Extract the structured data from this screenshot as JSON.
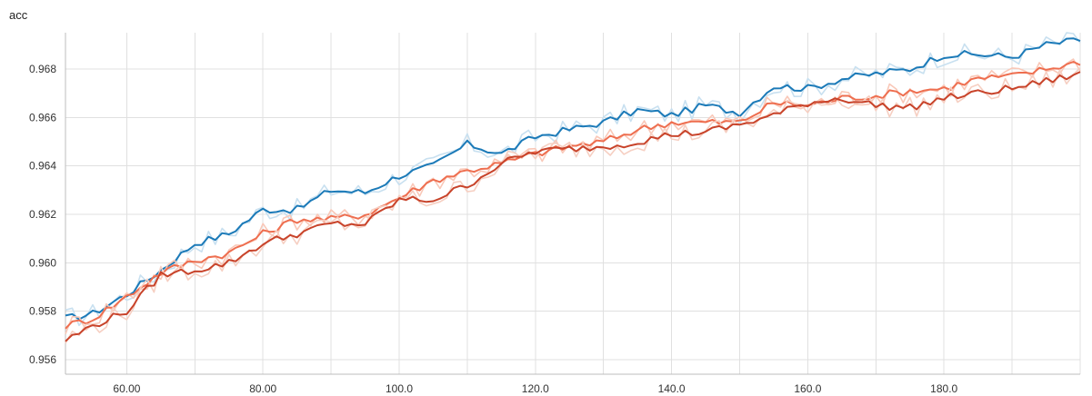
{
  "chart_data": {
    "type": "line",
    "title": "acc",
    "xlabel": "",
    "ylabel": "",
    "xlim": [
      51,
      200
    ],
    "ylim": [
      0.9554,
      0.9695
    ],
    "x_ticks": [
      60,
      80,
      100,
      120,
      140,
      160,
      180
    ],
    "x_tick_labels": [
      "60.00",
      "80.00",
      "100.0",
      "120.0",
      "140.0",
      "160.0",
      "180.0"
    ],
    "y_ticks": [
      0.956,
      0.958,
      0.96,
      0.962,
      0.964,
      0.966,
      0.968
    ],
    "y_tick_labels": [
      "0.956",
      "0.958",
      "0.960",
      "0.962",
      "0.964",
      "0.966",
      "0.968"
    ],
    "grid": true,
    "legend": "none",
    "colors": {
      "blue": "#1b7ab8",
      "blue_raw": "#c8e0f0",
      "orange": "#ee6e4f",
      "orange_raw": "#f9c8b8",
      "darkred": "#c8432a",
      "darkred_raw": "#f6cfc2"
    },
    "series": [
      {
        "color": "#1b7ab8",
        "raw_color": "#c8e0f0",
        "points": [
          [
            51,
            0.9577
          ],
          [
            55,
            0.9579
          ],
          [
            60,
            0.9587
          ],
          [
            65,
            0.9597
          ],
          [
            70,
            0.9608
          ],
          [
            75,
            0.9612
          ],
          [
            80,
            0.9622
          ],
          [
            85,
            0.9622
          ],
          [
            90,
            0.963
          ],
          [
            95,
            0.9629
          ],
          [
            100,
            0.9636
          ],
          [
            105,
            0.964
          ],
          [
            110,
            0.9649
          ],
          [
            115,
            0.9645
          ],
          [
            120,
            0.9652
          ],
          [
            125,
            0.9655
          ],
          [
            130,
            0.9658
          ],
          [
            135,
            0.9663
          ],
          [
            140,
            0.9661
          ],
          [
            145,
            0.9665
          ],
          [
            150,
            0.9662
          ],
          [
            155,
            0.9673
          ],
          [
            160,
            0.9672
          ],
          [
            165,
            0.9676
          ],
          [
            170,
            0.9678
          ],
          [
            175,
            0.968
          ],
          [
            180,
            0.9686
          ],
          [
            185,
            0.9686
          ],
          [
            190,
            0.9685
          ],
          [
            195,
            0.969
          ],
          [
            200,
            0.9692
          ]
        ]
      },
      {
        "color": "#ee6e4f",
        "raw_color": "#f9c8b8",
        "points": [
          [
            51,
            0.9574
          ],
          [
            55,
            0.9577
          ],
          [
            60,
            0.9586
          ],
          [
            65,
            0.9596
          ],
          [
            70,
            0.9601
          ],
          [
            75,
            0.9604
          ],
          [
            80,
            0.9612
          ],
          [
            85,
            0.9618
          ],
          [
            90,
            0.9618
          ],
          [
            95,
            0.962
          ],
          [
            100,
            0.9627
          ],
          [
            105,
            0.9634
          ],
          [
            110,
            0.9638
          ],
          [
            115,
            0.9641
          ],
          [
            120,
            0.9645
          ],
          [
            125,
            0.9648
          ],
          [
            130,
            0.965
          ],
          [
            135,
            0.9655
          ],
          [
            140,
            0.9658
          ],
          [
            145,
            0.9658
          ],
          [
            150,
            0.9658
          ],
          [
            155,
            0.9666
          ],
          [
            160,
            0.9665
          ],
          [
            165,
            0.9668
          ],
          [
            170,
            0.9669
          ],
          [
            175,
            0.9671
          ],
          [
            180,
            0.9672
          ],
          [
            185,
            0.9676
          ],
          [
            190,
            0.9677
          ],
          [
            195,
            0.968
          ],
          [
            200,
            0.9683
          ]
        ]
      },
      {
        "color": "#c8432a",
        "raw_color": "#f6cfc2",
        "points": [
          [
            51,
            0.9568
          ],
          [
            55,
            0.9574
          ],
          [
            60,
            0.958
          ],
          [
            65,
            0.9595
          ],
          [
            70,
            0.9597
          ],
          [
            75,
            0.96
          ],
          [
            80,
            0.9608
          ],
          [
            85,
            0.9612
          ],
          [
            90,
            0.9616
          ],
          [
            95,
            0.9616
          ],
          [
            100,
            0.9626
          ],
          [
            105,
            0.9626
          ],
          [
            110,
            0.9632
          ],
          [
            115,
            0.9641
          ],
          [
            120,
            0.9646
          ],
          [
            125,
            0.9647
          ],
          [
            130,
            0.9648
          ],
          [
            135,
            0.965
          ],
          [
            140,
            0.9653
          ],
          [
            145,
            0.9654
          ],
          [
            150,
            0.9657
          ],
          [
            155,
            0.9661
          ],
          [
            160,
            0.9666
          ],
          [
            165,
            0.9668
          ],
          [
            170,
            0.9665
          ],
          [
            175,
            0.9664
          ],
          [
            180,
            0.9668
          ],
          [
            185,
            0.967
          ],
          [
            190,
            0.9672
          ],
          [
            195,
            0.9675
          ],
          [
            200,
            0.9678
          ]
        ]
      }
    ]
  }
}
